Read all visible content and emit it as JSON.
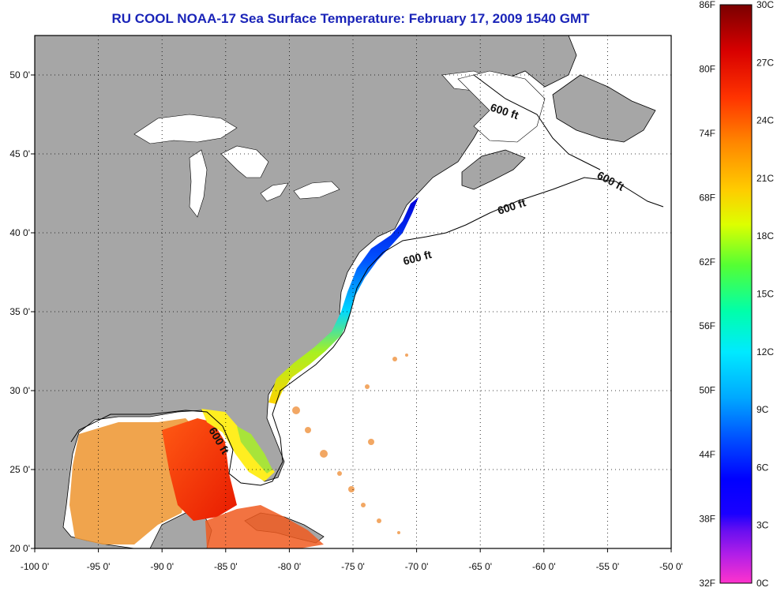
{
  "title": "RU COOL  NOAA-17  Sea Surface Temperature:  February 17, 2009 1540 GMT",
  "map": {
    "lon_range": [
      -100,
      -50
    ],
    "lat_range": [
      20,
      52.5
    ],
    "lon_ticks": [
      "-100 0'",
      "-95 0'",
      "-90 0'",
      "-85 0'",
      "-80 0'",
      "-75 0'",
      "-70 0'",
      "-65 0'",
      "-60 0'",
      "-55 0'",
      "-50 0'"
    ],
    "lat_ticks": [
      "50 0'",
      "45 0'",
      "40 0'",
      "35 0'",
      "30 0'",
      "25 0'",
      "20 0'"
    ],
    "contour_label": "600 ft",
    "colors": {
      "land": "#a6a6a6",
      "ocean": "#ffffff",
      "frame": "#000000"
    }
  },
  "colorbar": {
    "f_labels": [
      "86F",
      "80F",
      "74F",
      "68F",
      "62F",
      "56F",
      "50F",
      "44F",
      "38F",
      "32F"
    ],
    "c_labels": [
      "30C",
      "27C",
      "24C",
      "21C",
      "18C",
      "15C",
      "12C",
      "9C",
      "6C",
      "3C",
      "0C"
    ],
    "colors": [
      "#ff33cc",
      "#8800ff",
      "#0000ff",
      "#0066ff",
      "#00ccff",
      "#00ffcc",
      "#66ff33",
      "#ffff00",
      "#ffaa00",
      "#ff4400",
      "#cc0000",
      "#800000"
    ]
  }
}
